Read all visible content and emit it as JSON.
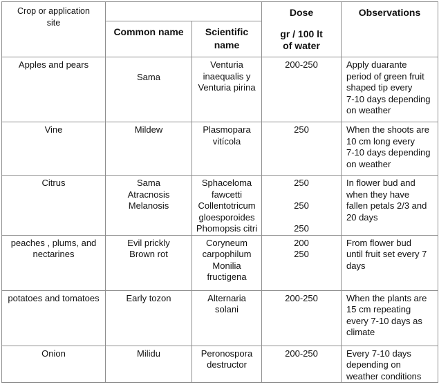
{
  "colors": {
    "border": "#8e8e8e",
    "text": "#111111",
    "background": "#ffffff"
  },
  "table": {
    "headers": {
      "crop": "Crop or application\nsite",
      "common": "Common name",
      "scientific": "Scientific\nname",
      "dose_title": "Dose",
      "dose_unit": "gr / 100 lt\nof water",
      "observations": "Observations"
    },
    "rows": [
      {
        "crop": "Apples and pears",
        "common": "Sama",
        "scientific": "Venturia\ninaequalis y\nVenturia pirina",
        "dose": "200-250",
        "observations": "Apply duarante\nperiod of green fruit\nshaped tip every\n7-10 days depending\non weather"
      },
      {
        "crop": "Vine",
        "common": "Mildew",
        "scientific": "Plasmopara\nvitícola",
        "dose": "250",
        "observations": "When the shoots are\n10 cm long every\n7-10 days depending\non weather"
      },
      {
        "crop": "Citrus",
        "common": "Sama\nAtracnosis\nMelanosis",
        "scientific": "Sphaceloma\nfawcetti\nCollentotricum\ngloesporoides\nPhomopsis citri",
        "dose": "250\n\n250\n\n250",
        "observations": "In flower bud and\nwhen they have\nfallen petals 2/3 and\n20 days"
      },
      {
        "crop": "peaches , plums, and\nnectarines",
        "common": "Evil prickly\nBrown rot",
        "scientific": "Coryneum\ncarpophilum\nMonilia\nfructigena",
        "dose": "200\n250",
        "observations": "From flower bud\nuntil fruit set every 7\ndays"
      },
      {
        "crop": "potatoes and tomatoes",
        "common": "Early tozon",
        "scientific": "Alternaria\nsolani",
        "dose": "200-250",
        "observations": "When the plants are\n15 cm repeating\nevery 7-10 days as\nclimate"
      },
      {
        "crop": "Onion",
        "common": "Milidu",
        "scientific": "Peronospora\ndestructor",
        "dose": "200-250",
        "observations": "Every 7-10 days\ndepending on\nweather conditions"
      }
    ]
  }
}
